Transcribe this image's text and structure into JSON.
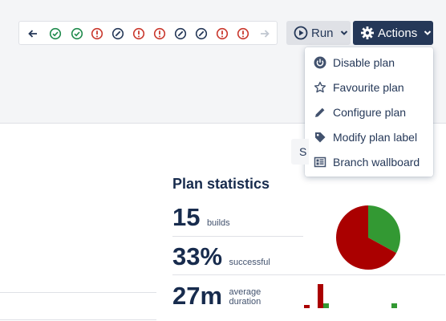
{
  "history": {
    "items": [
      {
        "icon": "arrow-left-icon",
        "status": "nav",
        "color": "#253858"
      },
      {
        "icon": "check-circle-icon",
        "status": "successful",
        "color": "#1f8a4c"
      },
      {
        "icon": "check-circle-icon",
        "status": "successful",
        "color": "#1f8a4c"
      },
      {
        "icon": "exclamation-circle-icon",
        "status": "failed",
        "color": "#c9372c"
      },
      {
        "icon": "cancelled-circle-icon",
        "status": "cancelled",
        "color": "#253858"
      },
      {
        "icon": "exclamation-circle-icon",
        "status": "failed",
        "color": "#c9372c"
      },
      {
        "icon": "exclamation-circle-icon",
        "status": "failed",
        "color": "#c9372c"
      },
      {
        "icon": "cancelled-circle-icon",
        "status": "cancelled",
        "color": "#253858"
      },
      {
        "icon": "cancelled-circle-icon",
        "status": "cancelled",
        "color": "#253858"
      },
      {
        "icon": "exclamation-circle-icon",
        "status": "failed",
        "color": "#c9372c"
      },
      {
        "icon": "exclamation-circle-icon",
        "status": "failed",
        "color": "#c9372c"
      },
      {
        "icon": "arrow-right-icon",
        "status": "nav-disabled",
        "color": "#c1c7d0"
      }
    ]
  },
  "toolbar": {
    "run_label": "Run",
    "actions_label": "Actions"
  },
  "actions_menu": {
    "items": [
      {
        "label": "Disable plan",
        "icon": "power-icon"
      },
      {
        "label": "Favourite plan",
        "icon": "star-icon"
      },
      {
        "label": "Configure plan",
        "icon": "pencil-icon"
      },
      {
        "label": "Modify plan label",
        "icon": "tag-icon"
      },
      {
        "label": "Branch wallboard",
        "icon": "wallboard-icon"
      }
    ]
  },
  "partial_button_label": "S",
  "stats": {
    "title": "Plan statistics",
    "builds_value": "15",
    "builds_unit": "builds",
    "success_value": "33%",
    "success_unit": "successful",
    "duration_value": "27m",
    "duration_unit_line1": "average",
    "duration_unit_line2": "duration"
  },
  "chart_data": [
    {
      "type": "pie",
      "values": [
        33,
        67
      ],
      "colors": [
        "#339933",
        "#aa0000"
      ]
    },
    {
      "type": "bar",
      "series": [
        {
          "values": [
            4,
            30,
            0,
            0,
            0,
            0,
            0,
            0,
            0
          ],
          "color": "#aa0000"
        },
        {
          "values": [
            0,
            6,
            0,
            0,
            0,
            0,
            6,
            0,
            0
          ],
          "color": "#339933"
        }
      ]
    }
  ],
  "colors": {
    "success": "#339933",
    "failure": "#aa0000",
    "primary": "#253858"
  }
}
